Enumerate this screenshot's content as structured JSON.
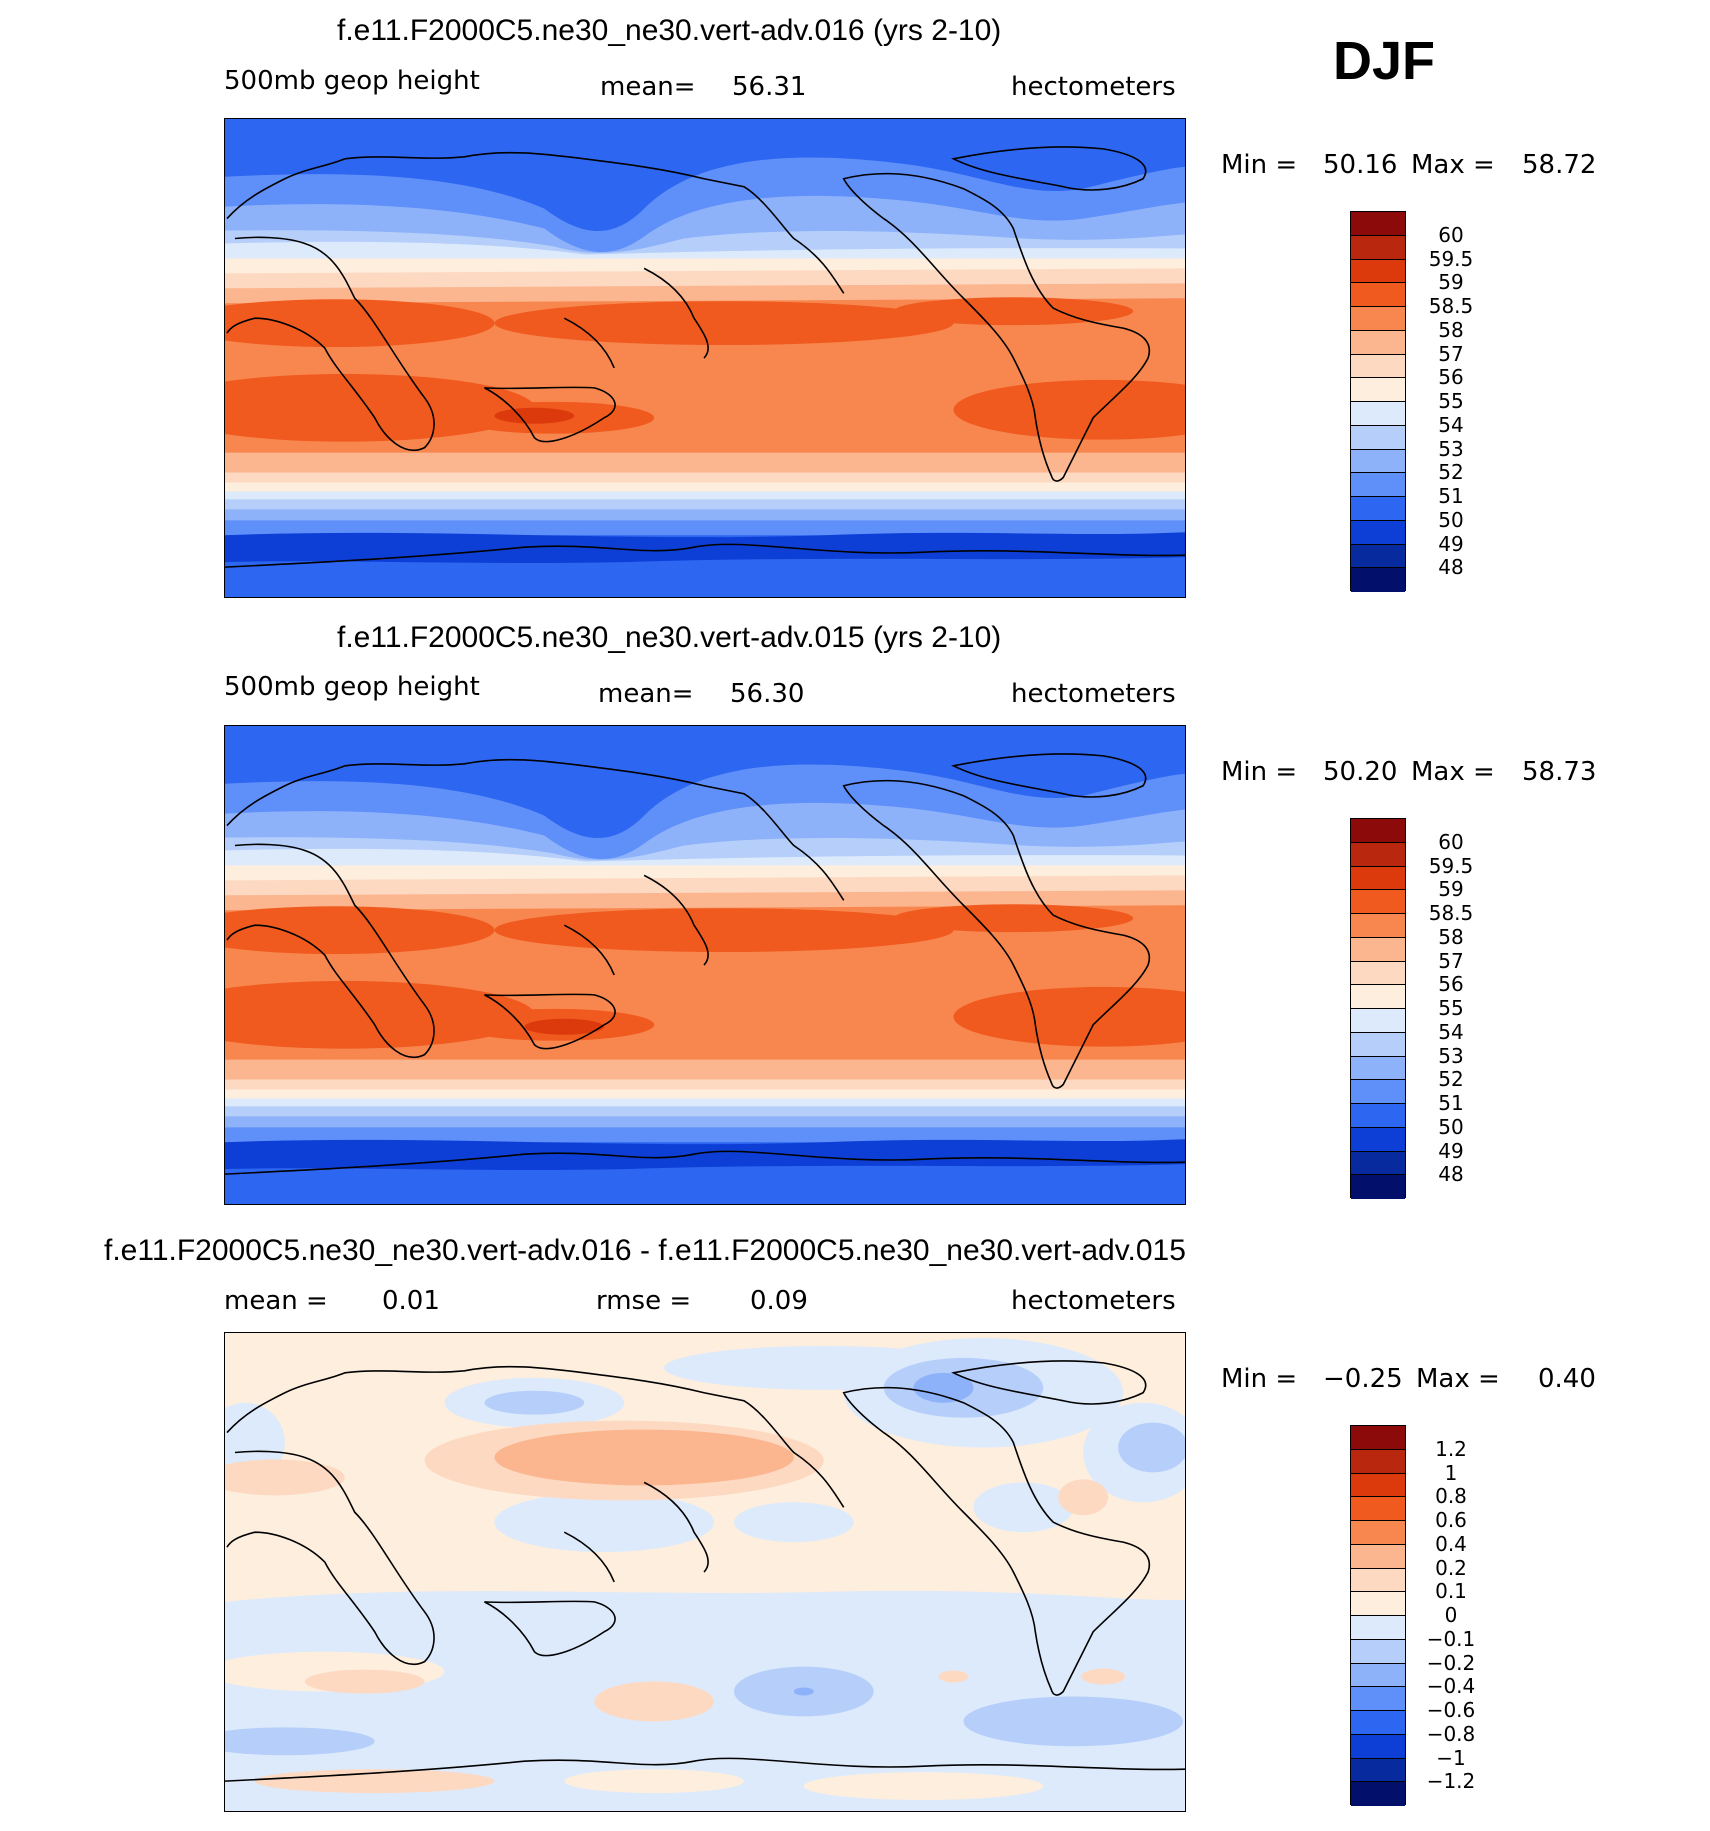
{
  "season": "DJF",
  "panels": [
    {
      "title": "f.e11.F2000C5.ne30_ne30.vert-adv.016 (yrs 2-10)",
      "variable": "500mb geop height",
      "stat_label": "mean=",
      "stat_value": "56.31",
      "units": "hectometers",
      "min_label": "Min =",
      "min_value": "50.16",
      "max_label": "Max =",
      "max_value": "58.72",
      "levels": [
        "60",
        "59.5",
        "59",
        "58.5",
        "58",
        "57",
        "56",
        "55",
        "54",
        "53",
        "52",
        "51",
        "50",
        "49",
        "48"
      ],
      "colors": [
        "#8c0a0a",
        "#b8270e",
        "#dc3a0c",
        "#f05a1e",
        "#f7874f",
        "#fbb58f",
        "#fdd9c2",
        "#fdeede",
        "#ddeafb",
        "#b6cffa",
        "#8db2fa",
        "#5f8ff8",
        "#2d66f0",
        "#0d3fd6",
        "#072a9e",
        "#020f6b"
      ]
    },
    {
      "title": "f.e11.F2000C5.ne30_ne30.vert-adv.015 (yrs 2-10)",
      "variable": "500mb geop height",
      "stat_label": "mean=",
      "stat_value": "56.30",
      "units": "hectometers",
      "min_label": "Min =",
      "min_value": "50.20",
      "max_label": "Max =",
      "max_value": "58.73",
      "levels": [
        "60",
        "59.5",
        "59",
        "58.5",
        "58",
        "57",
        "56",
        "55",
        "54",
        "53",
        "52",
        "51",
        "50",
        "49",
        "48"
      ],
      "colors": [
        "#8c0a0a",
        "#b8270e",
        "#dc3a0c",
        "#f05a1e",
        "#f7874f",
        "#fbb58f",
        "#fdd9c2",
        "#fdeede",
        "#ddeafb",
        "#b6cffa",
        "#8db2fa",
        "#5f8ff8",
        "#2d66f0",
        "#0d3fd6",
        "#072a9e",
        "#020f6b"
      ]
    },
    {
      "title": "f.e11.F2000C5.ne30_ne30.vert-adv.016 - f.e11.F2000C5.ne30_ne30.vert-adv.015",
      "variable": "",
      "mean_label": "mean =",
      "mean_value": "0.01",
      "stat_label": "rmse =",
      "stat_value": "0.09",
      "units": "hectometers",
      "min_label": "Min =",
      "min_value": "−0.25",
      "max_label": "Max =",
      "max_value": "0.40",
      "levels": [
        "1.2",
        "1",
        "0.8",
        "0.6",
        "0.4",
        "0.2",
        "0.1",
        "0",
        "−0.1",
        "−0.2",
        "−0.4",
        "−0.6",
        "−0.8",
        "−1",
        "−1.2"
      ],
      "colors": [
        "#8c0a0a",
        "#b8270e",
        "#dc3a0c",
        "#f05a1e",
        "#f7874f",
        "#fbb58f",
        "#fdd9c2",
        "#fdeede",
        "#ddeafb",
        "#b6cffa",
        "#8db2fa",
        "#5f8ff8",
        "#2d66f0",
        "#0d3fd6",
        "#072a9e",
        "#020f6b"
      ]
    }
  ]
}
